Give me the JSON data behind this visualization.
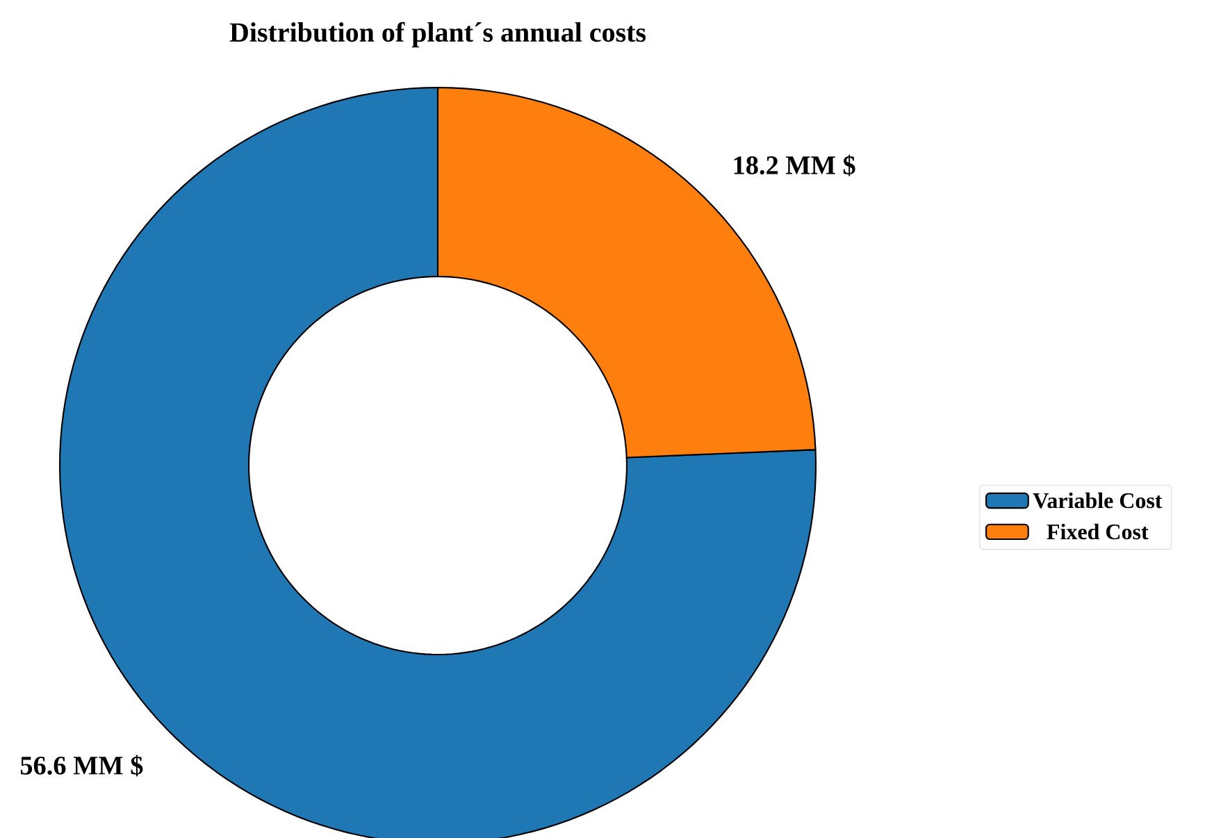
{
  "chart_data": {
    "type": "donut",
    "title": "Distribution of plant´s annual costs",
    "categories": [
      "Variable Cost",
      "Fixed Cost"
    ],
    "values": [
      56.6,
      18.2
    ],
    "colors": [
      "#1f77b4",
      "#ff7f0e"
    ],
    "value_labels": [
      "56.6 MM $",
      "18.2 MM $"
    ],
    "legend": "right"
  }
}
